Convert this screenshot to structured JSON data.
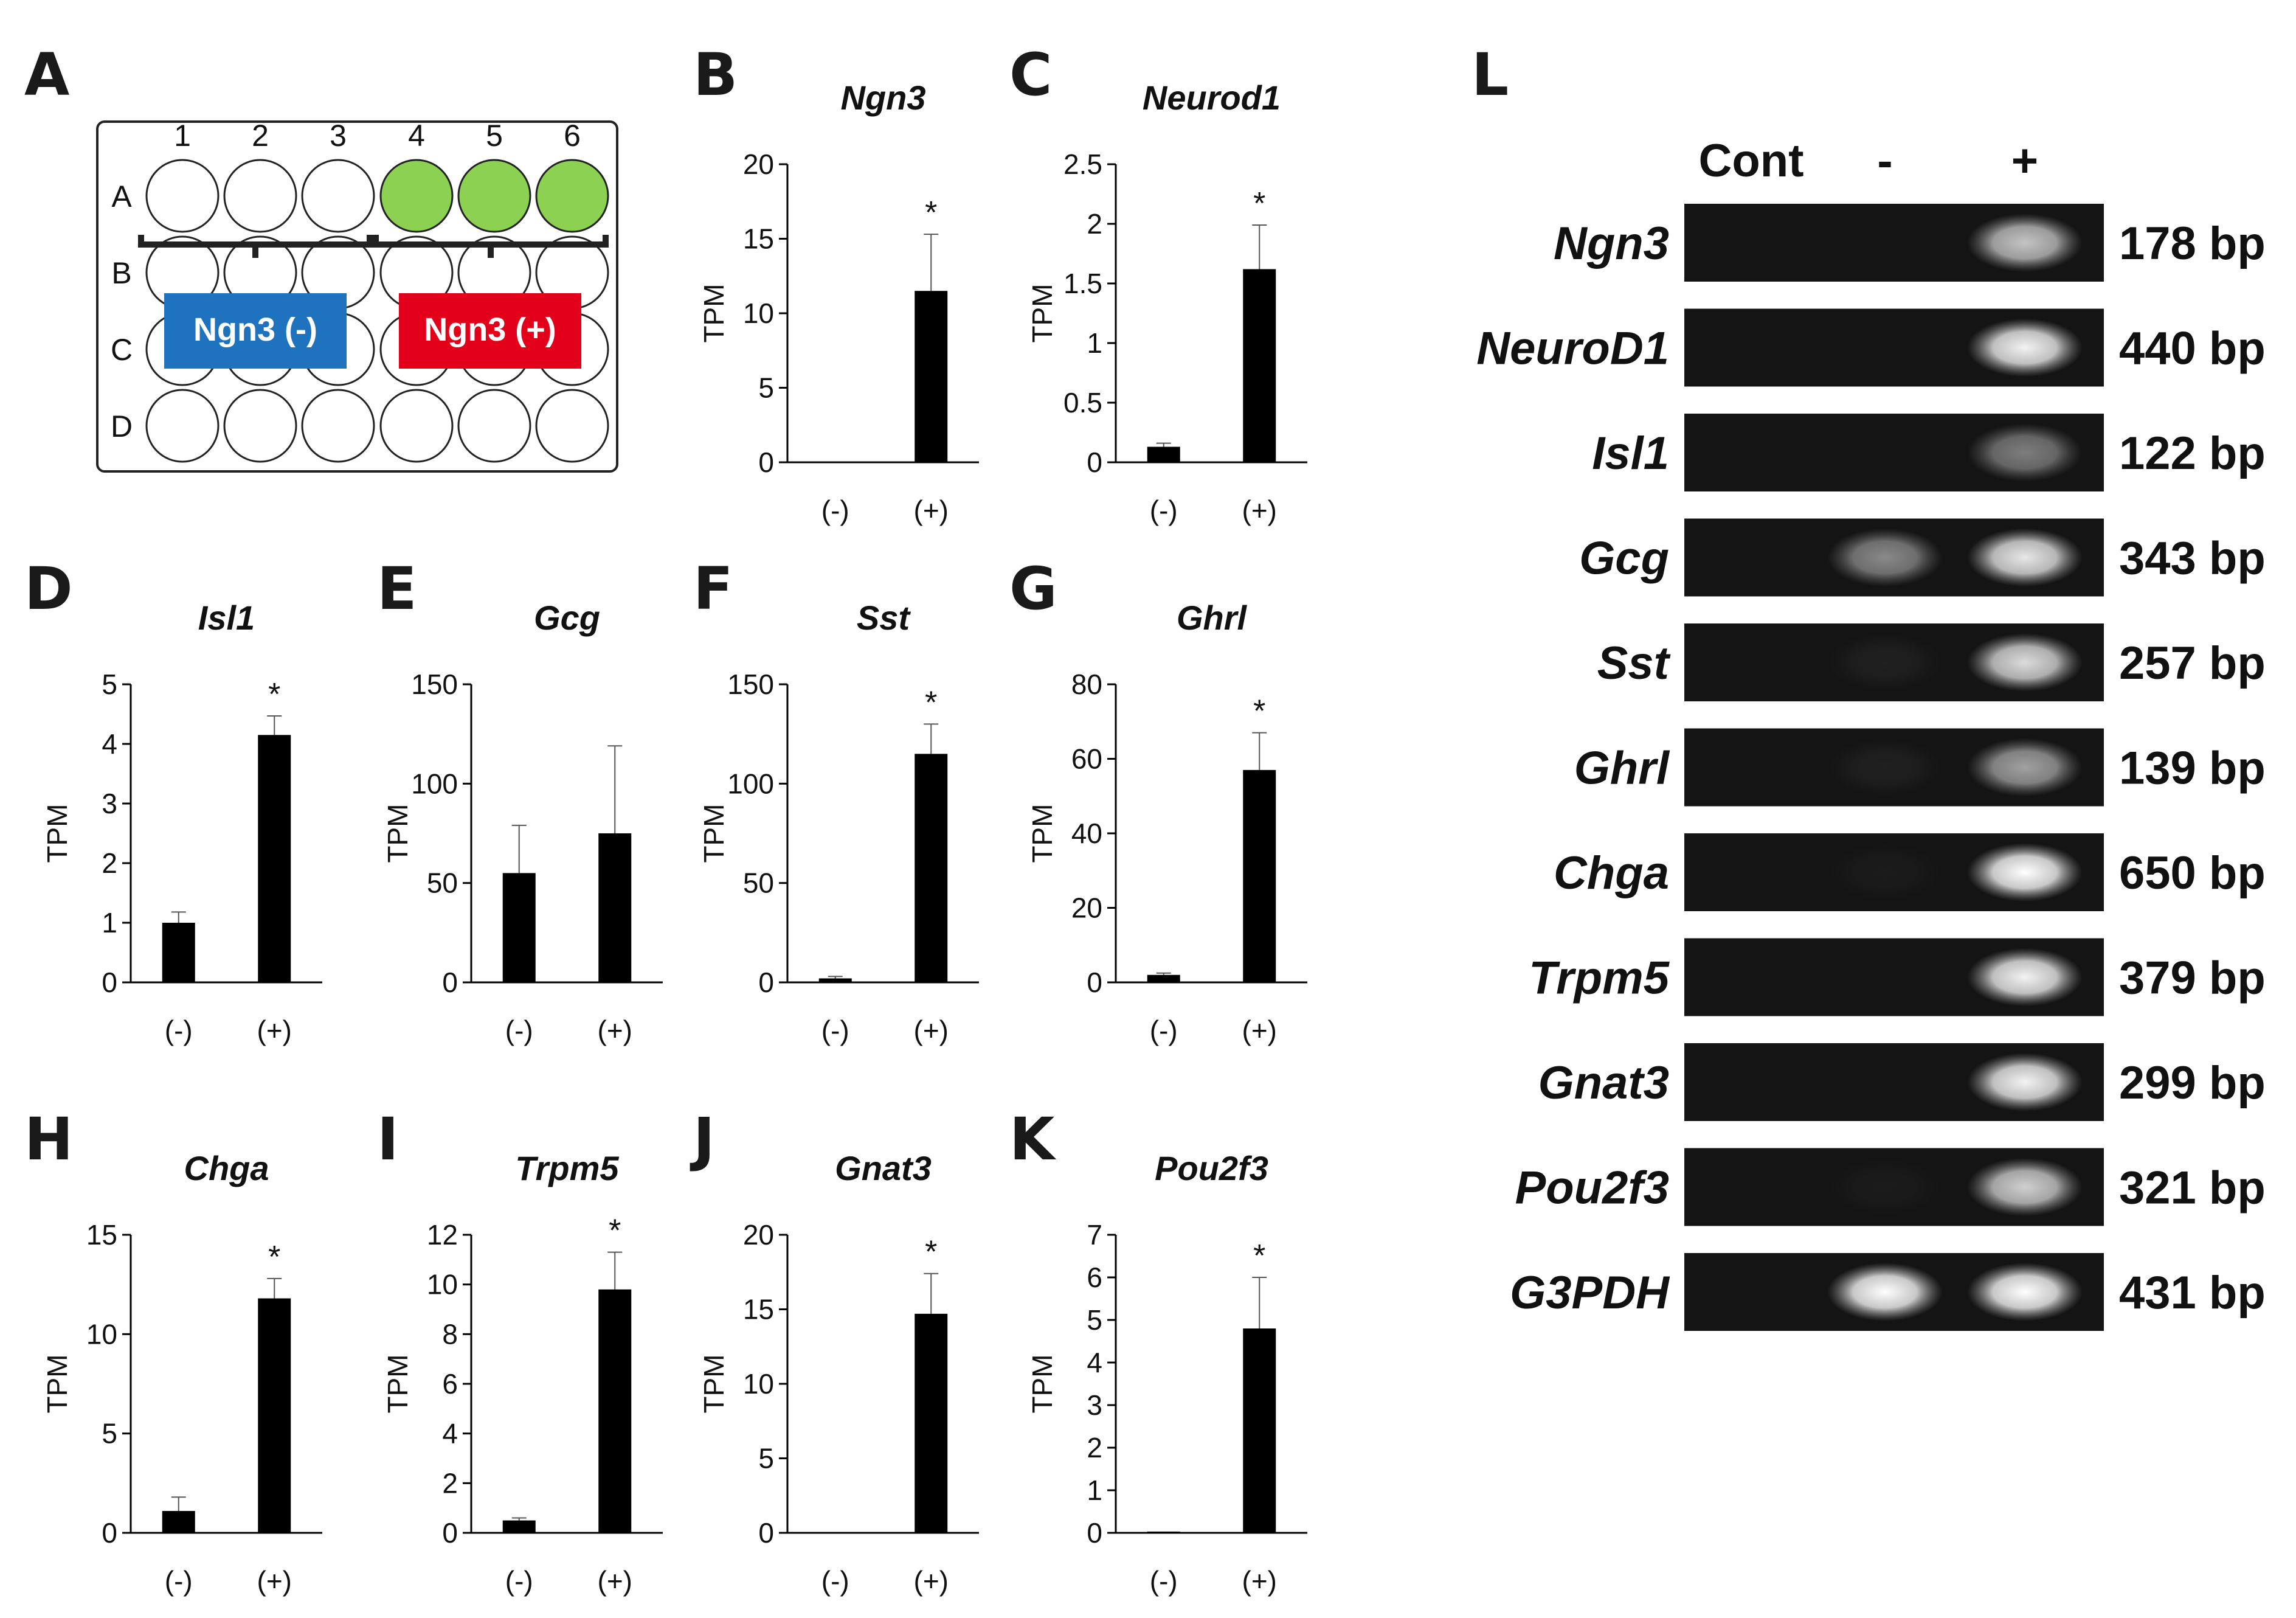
{
  "panel_letters": [
    "A",
    "B",
    "C",
    "D",
    "E",
    "F",
    "G",
    "H",
    "I",
    "J",
    "K",
    "L"
  ],
  "plate": {
    "columns": [
      "1",
      "2",
      "3",
      "4",
      "5",
      "6"
    ],
    "rows": [
      "A",
      "B",
      "C",
      "D"
    ],
    "green_wells": "row A, columns 4-6",
    "well_fill_color": "#8dd153",
    "labels": [
      {
        "text": "Ngn3 (-)",
        "color": "#1f73be"
      },
      {
        "text": "Ngn3 (+)",
        "color": "#e3001b"
      }
    ]
  },
  "chart_data": [
    {
      "panel": "B",
      "type": "bar",
      "title": "Ngn3",
      "ylabel": "TPM",
      "categories": [
        "(-)",
        "(+)"
      ],
      "values": [
        0.05,
        11.5
      ],
      "errors": [
        0,
        3.8
      ],
      "ylim": [
        0,
        20
      ],
      "yticks": [
        "0",
        "5",
        "10",
        "15",
        "20"
      ],
      "significance": [
        null,
        "*"
      ],
      "color": "#000000"
    },
    {
      "panel": "C",
      "type": "bar",
      "title": "Neurod1",
      "ylabel": "TPM",
      "categories": [
        "(-)",
        "(+)"
      ],
      "values": [
        0.13,
        1.62
      ],
      "errors": [
        0.03,
        0.37
      ],
      "ylim": [
        0,
        2.5
      ],
      "yticks": [
        "0",
        "0.5",
        "1",
        "1.5",
        "2",
        "2.5"
      ],
      "significance": [
        null,
        "*"
      ],
      "color": "#000000"
    },
    {
      "panel": "D",
      "type": "bar",
      "title": "Isl1",
      "ylabel": "TPM",
      "categories": [
        "(-)",
        "(+)"
      ],
      "values": [
        1.0,
        4.15
      ],
      "errors": [
        0.18,
        0.32
      ],
      "ylim": [
        0,
        5
      ],
      "yticks": [
        "0",
        "1",
        "2",
        "3",
        "4",
        "5"
      ],
      "significance": [
        null,
        "*"
      ],
      "color": "#000000"
    },
    {
      "panel": "E",
      "type": "bar",
      "title": "Gcg",
      "ylabel": "TPM",
      "categories": [
        "(-)",
        "(+)"
      ],
      "values": [
        55,
        75
      ],
      "errors": [
        24,
        44
      ],
      "ylim": [
        0,
        150
      ],
      "yticks": [
        "0",
        "50",
        "100",
        "150"
      ],
      "significance": [
        null,
        null
      ],
      "color": "#000000"
    },
    {
      "panel": "F",
      "type": "bar",
      "title": "Sst",
      "ylabel": "TPM",
      "categories": [
        "(-)",
        "(+)"
      ],
      "values": [
        2,
        115
      ],
      "errors": [
        1,
        15
      ],
      "ylim": [
        0,
        150
      ],
      "yticks": [
        "0",
        "50",
        "100",
        "150"
      ],
      "significance": [
        null,
        "*"
      ],
      "color": "#000000"
    },
    {
      "panel": "G",
      "type": "bar",
      "title": "Ghrl",
      "ylabel": "TPM",
      "categories": [
        "(-)",
        "(+)"
      ],
      "values": [
        2,
        57
      ],
      "errors": [
        0.5,
        10
      ],
      "ylim": [
        0,
        80
      ],
      "yticks": [
        "0",
        "20",
        "40",
        "60",
        "80"
      ],
      "significance": [
        null,
        "*"
      ],
      "color": "#000000"
    },
    {
      "panel": "H",
      "type": "bar",
      "title": "Chga",
      "ylabel": "TPM",
      "categories": [
        "(-)",
        "(+)"
      ],
      "values": [
        1.1,
        11.8
      ],
      "errors": [
        0.7,
        1.0
      ],
      "ylim": [
        0,
        15
      ],
      "yticks": [
        "0",
        "5",
        "10",
        "15"
      ],
      "significance": [
        null,
        "*"
      ],
      "color": "#000000"
    },
    {
      "panel": "I",
      "type": "bar",
      "title": "Trpm5",
      "ylabel": "TPM",
      "categories": [
        "(-)",
        "(+)"
      ],
      "values": [
        0.5,
        9.8
      ],
      "errors": [
        0.1,
        1.5
      ],
      "ylim": [
        0,
        12
      ],
      "yticks": [
        "0",
        "2",
        "4",
        "6",
        "8",
        "10",
        "12"
      ],
      "significance": [
        null,
        "*"
      ],
      "color": "#000000"
    },
    {
      "panel": "J",
      "type": "bar",
      "title": "Gnat3",
      "ylabel": "TPM",
      "categories": [
        "(-)",
        "(+)"
      ],
      "values": [
        0,
        14.7
      ],
      "errors": [
        0,
        2.7
      ],
      "ylim": [
        0,
        20
      ],
      "yticks": [
        "0",
        "5",
        "10",
        "15",
        "20"
      ],
      "significance": [
        null,
        "*"
      ],
      "color": "#000000"
    },
    {
      "panel": "K",
      "type": "bar",
      "title": "Pou2f3",
      "ylabel": "TPM",
      "categories": [
        "(-)",
        "(+)"
      ],
      "values": [
        0.03,
        4.8
      ],
      "errors": [
        0,
        1.2
      ],
      "ylim": [
        0,
        7
      ],
      "yticks": [
        "0",
        "1",
        "2",
        "3",
        "4",
        "5",
        "6",
        "7"
      ],
      "significance": [
        null,
        "*"
      ],
      "color": "#000000"
    }
  ],
  "gel": {
    "lane_headers": [
      "Cont",
      "-",
      "+"
    ],
    "rows": [
      {
        "gene": "Ngn3",
        "bp": "178 bp",
        "intensity": [
          0.0,
          0.0,
          0.75
        ]
      },
      {
        "gene": "NeuroD1",
        "bp": "440 bp",
        "intensity": [
          0.0,
          0.0,
          0.95
        ]
      },
      {
        "gene": "Isl1",
        "bp": "122 bp",
        "intensity": [
          0.0,
          0.0,
          0.45
        ]
      },
      {
        "gene": "Gcg",
        "bp": "343 bp",
        "intensity": [
          0.0,
          0.5,
          0.9
        ]
      },
      {
        "gene": "Sst",
        "bp": "257 bp",
        "intensity": [
          0.0,
          0.05,
          0.85
        ]
      },
      {
        "gene": "Ghrl",
        "bp": "139 bp",
        "intensity": [
          0.0,
          0.05,
          0.6
        ]
      },
      {
        "gene": "Chga",
        "bp": "650 bp",
        "intensity": [
          0.0,
          0.03,
          1.0
        ]
      },
      {
        "gene": "Trpm5",
        "bp": "379 bp",
        "intensity": [
          0.0,
          0.0,
          0.95
        ]
      },
      {
        "gene": "Gnat3",
        "bp": "299 bp",
        "intensity": [
          0.0,
          0.0,
          0.95
        ]
      },
      {
        "gene": "Pou2f3",
        "bp": "321 bp",
        "intensity": [
          0.0,
          0.03,
          0.8
        ]
      },
      {
        "gene": "G3PDH",
        "bp": "431 bp",
        "intensity": [
          0.0,
          1.0,
          1.0
        ]
      }
    ]
  }
}
